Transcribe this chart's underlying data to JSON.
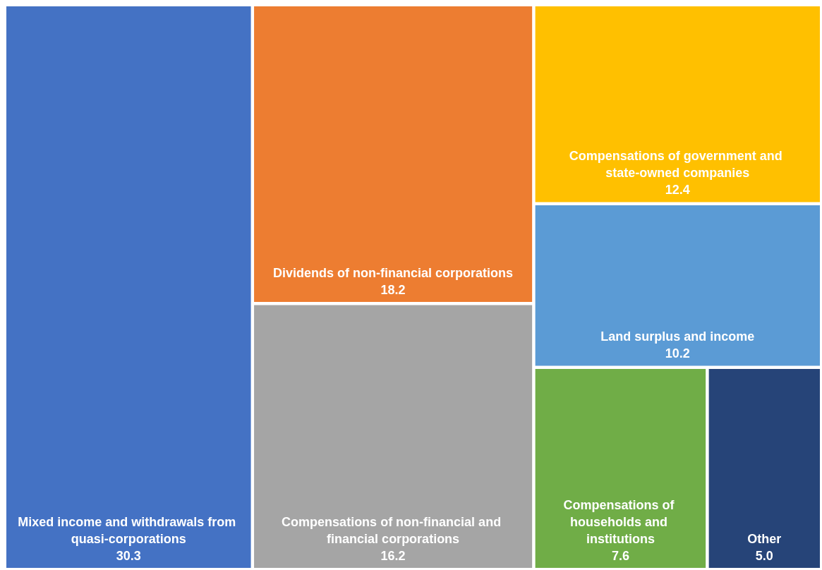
{
  "chart_data": {
    "type": "other",
    "categories": [
      "Mixed income and withdrawals from quasi-corporations",
      "Dividends of non-financial corporations",
      "Compensations of non-financial and financial corporations",
      "Compensations of government and state-owned companies",
      "Land surplus and income",
      "Compensations of households and institutions",
      "Other"
    ],
    "values": [
      30.3,
      18.2,
      16.2,
      12.4,
      10.2,
      7.6,
      5.0
    ],
    "value_labels": [
      "30.3",
      "18.2",
      "16.2",
      "12.4",
      "10.2",
      "7.6",
      "5.0"
    ],
    "colors": [
      "#4472c4",
      "#ed7d31",
      "#a5a5a5",
      "#ffc000",
      "#5b9bd5",
      "#70ad47",
      "#264478"
    ]
  }
}
